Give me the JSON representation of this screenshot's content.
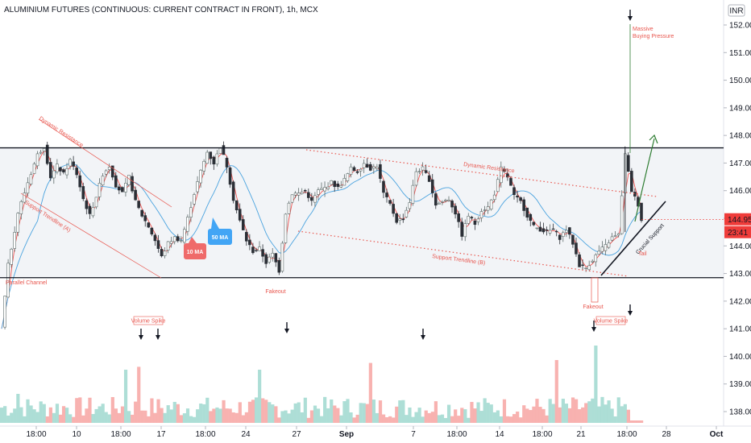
{
  "header": {
    "title": "ALUMINIUM FUTURES (CONTINUOUS: CURRENT CONTRACT IN FRONT), 1h, MCX",
    "currency": "INR"
  },
  "chart_data": {
    "type": "candlestick",
    "title": "ALUMINIUM FUTURES (CONTINUOUS: CURRENT CONTRACT IN FRONT), 1h, MCX",
    "currency": "INR",
    "ylim": [
      137.6,
      152.6
    ],
    "yticks": [
      "152.00",
      "151.00",
      "150.00",
      "149.00",
      "148.00",
      "147.00",
      "146.00",
      "145.00",
      "144.00",
      "143.00",
      "142.00",
      "141.00",
      "140.00",
      "139.00",
      "138.00"
    ],
    "xticks": [
      "18:00",
      "10",
      "18:00",
      "17",
      "18:00",
      "24",
      "27",
      "Sep",
      "7",
      "18:00",
      "14",
      "18:00",
      "21",
      "18:00",
      "28",
      "Oct"
    ],
    "last_price": "144.95",
    "countdown": "23:41",
    "channel": {
      "upper": 147.55,
      "lower": 142.85,
      "label": "Parallel Channel"
    },
    "price_path": [
      [
        0,
        141.0
      ],
      [
        2,
        143.3
      ],
      [
        5,
        145.2
      ],
      [
        8,
        146.3
      ],
      [
        11,
        147.3
      ],
      [
        13,
        147.6
      ],
      [
        15,
        146.5
      ],
      [
        17,
        146.9
      ],
      [
        19,
        146.6
      ],
      [
        21,
        147.1
      ],
      [
        23,
        146.6
      ],
      [
        25,
        145.7
      ],
      [
        27,
        145.1
      ],
      [
        29,
        145.8
      ],
      [
        31,
        146.6
      ],
      [
        33,
        146.9
      ],
      [
        35,
        146.2
      ],
      [
        37,
        145.9
      ],
      [
        39,
        146.5
      ],
      [
        41,
        145.6
      ],
      [
        43,
        145.1
      ],
      [
        45,
        144.7
      ],
      [
        47,
        144.2
      ],
      [
        49,
        143.6
      ],
      [
        51,
        144.1
      ],
      [
        53,
        144.3
      ],
      [
        55,
        144.2
      ],
      [
        57,
        145.0
      ],
      [
        59,
        145.9
      ],
      [
        61,
        146.7
      ],
      [
        63,
        147.4
      ],
      [
        65,
        147.0
      ],
      [
        67,
        147.6
      ],
      [
        69,
        146.9
      ],
      [
        71,
        145.7
      ],
      [
        73,
        144.9
      ],
      [
        75,
        144.2
      ],
      [
        77,
        143.8
      ],
      [
        79,
        143.9
      ],
      [
        81,
        143.4
      ],
      [
        83,
        143.7
      ],
      [
        85,
        143.1
      ],
      [
        87,
        145.2
      ],
      [
        89,
        145.9
      ],
      [
        91,
        145.9
      ],
      [
        93,
        146.0
      ],
      [
        95,
        145.6
      ],
      [
        97,
        146.0
      ],
      [
        99,
        146.1
      ],
      [
        101,
        146.3
      ],
      [
        103,
        146.1
      ],
      [
        105,
        146.4
      ],
      [
        107,
        146.8
      ],
      [
        109,
        146.7
      ],
      [
        111,
        147.0
      ],
      [
        113,
        146.8
      ],
      [
        115,
        146.9
      ],
      [
        117,
        145.9
      ],
      [
        119,
        145.5
      ],
      [
        121,
        144.9
      ],
      [
        123,
        145.0
      ],
      [
        125,
        145.6
      ],
      [
        127,
        146.7
      ],
      [
        129,
        146.8
      ],
      [
        131,
        146.4
      ],
      [
        133,
        145.5
      ],
      [
        135,
        145.6
      ],
      [
        137,
        145.7
      ],
      [
        139,
        145.2
      ],
      [
        141,
        144.4
      ],
      [
        143,
        145.1
      ],
      [
        145,
        144.8
      ],
      [
        147,
        145.3
      ],
      [
        149,
        145.4
      ],
      [
        151,
        145.9
      ],
      [
        153,
        146.8
      ],
      [
        155,
        146.5
      ],
      [
        157,
        145.8
      ],
      [
        159,
        145.6
      ],
      [
        161,
        145.1
      ],
      [
        163,
        144.7
      ],
      [
        165,
        144.6
      ],
      [
        167,
        144.5
      ],
      [
        169,
        144.6
      ],
      [
        171,
        144.3
      ],
      [
        173,
        144.6
      ],
      [
        175,
        144.1
      ],
      [
        177,
        143.3
      ],
      [
        179,
        143.2
      ],
      [
        181,
        143.5
      ],
      [
        183,
        143.8
      ],
      [
        185,
        144.0
      ],
      [
        187,
        144.3
      ],
      [
        189,
        144.4
      ],
      [
        191,
        147.3
      ],
      [
        193,
        146.0
      ],
      [
        195,
        145.5
      ],
      [
        196,
        144.95
      ]
    ],
    "volume_spikes": [
      {
        "i": 5,
        "value": 0.3
      },
      {
        "i": 38,
        "value": 0.55
      },
      {
        "i": 42,
        "value": 0.58
      },
      {
        "i": 79,
        "value": 0.55
      },
      {
        "i": 113,
        "value": 0.62
      },
      {
        "i": 170,
        "value": 0.65
      },
      {
        "i": 182,
        "value": 0.8
      }
    ],
    "annotations": {
      "dynamic_resistance_1": "Dynamic Resistance",
      "support_trendline_a": "Support Trendline (A)",
      "parallel_channel": "Parallel Channel",
      "ma10": "10 MA",
      "ma50": "50 MA",
      "fakeout_1": "Fakeout",
      "dynamic_resistance_2": "Dynamic Resistance",
      "support_trendline_b": "Support Trendline (B)",
      "fakeout_2": "Fakeout",
      "massive_buying_1": "Massive",
      "massive_buying_2": "Buying Pressure",
      "crucial_support": "Crucial Support",
      "tail": "Tail",
      "volume_spike_1": "Volume Spike",
      "volume_spike_2": "Volume Spike"
    },
    "colors": {
      "up": "#26a69a",
      "down": "#ef5350",
      "ma10": "#ef5350",
      "ma50": "#4aa3df",
      "annotation": "#e8564e",
      "channel_fill": "#f2f4f7",
      "projection": "#2e7d32",
      "volume_up": "#9fd8cf",
      "volume_down": "#f7a5a2"
    }
  }
}
